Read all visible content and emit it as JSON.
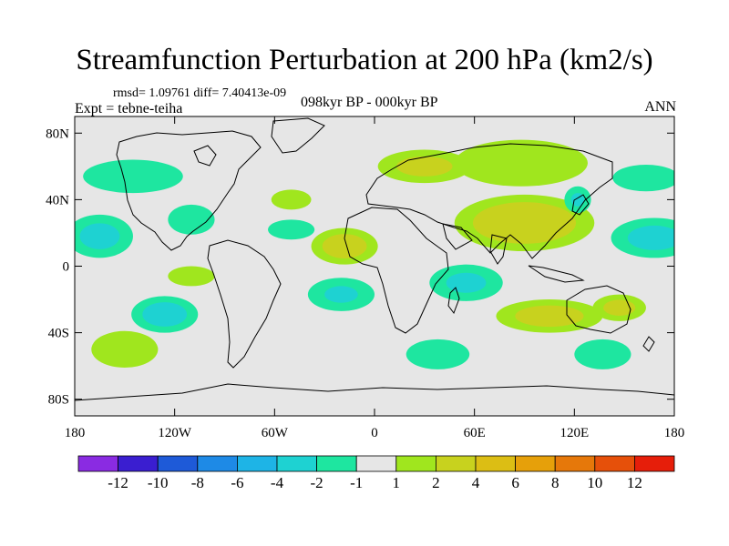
{
  "title": "Streamfunction Perturbation at 200 hPa (km2/s)",
  "stats_text": "rmsd= 1.09761  diff= 7.40413e-09",
  "experiment": "Expt = tebne-teiha",
  "period": "098kyr BP - 000kyr BP",
  "season": "ANN",
  "map": {
    "lat_ticks": [
      {
        "value": 80,
        "label": "80N"
      },
      {
        "value": 40,
        "label": "40N"
      },
      {
        "value": 0,
        "label": "0"
      },
      {
        "value": -40,
        "label": "40S"
      },
      {
        "value": -80,
        "label": "80S"
      }
    ],
    "lon_ticks": [
      {
        "value": -180,
        "label": "180"
      },
      {
        "value": -120,
        "label": "120W"
      },
      {
        "value": -60,
        "label": "60W"
      },
      {
        "value": 0,
        "label": "0"
      },
      {
        "value": 60,
        "label": "60E"
      },
      {
        "value": 120,
        "label": "120E"
      },
      {
        "value": 180,
        "label": "180"
      }
    ],
    "lon_range": [
      -180,
      180
    ],
    "lat_range": [
      -90,
      90
    ],
    "background_color": "#e6e6e6"
  },
  "anomalies": [
    {
      "lon": -145,
      "lat": 54,
      "rlon": 30,
      "rlat": 10,
      "value": -1.5
    },
    {
      "lon": -165,
      "lat": 18,
      "rlon": 20,
      "rlat": 13,
      "value": -2.5
    },
    {
      "lon": -110,
      "lat": 28,
      "rlon": 14,
      "rlat": 9,
      "value": -1.8
    },
    {
      "lon": -50,
      "lat": 40,
      "rlon": 12,
      "rlat": 6,
      "value": 1.4
    },
    {
      "lon": -50,
      "lat": 22,
      "rlon": 14,
      "rlat": 6,
      "value": -1.4
    },
    {
      "lon": -110,
      "lat": -6,
      "rlon": 14,
      "rlat": 6,
      "value": 1.3
    },
    {
      "lon": -126,
      "lat": -29,
      "rlon": 20,
      "rlat": 11,
      "value": -3.0
    },
    {
      "lon": -150,
      "lat": -50,
      "rlon": 20,
      "rlat": 11,
      "value": 1.8
    },
    {
      "lon": -18,
      "lat": 12,
      "rlon": 20,
      "rlat": 11,
      "value": 3.0
    },
    {
      "lon": -20,
      "lat": -17,
      "rlon": 20,
      "rlat": 10,
      "value": -2.0
    },
    {
      "lon": 30,
      "lat": 60,
      "rlon": 28,
      "rlat": 10,
      "value": 2.5
    },
    {
      "lon": 88,
      "lat": 62,
      "rlon": 40,
      "rlat": 14,
      "value": 1.8
    },
    {
      "lon": 90,
      "lat": 26,
      "rlon": 42,
      "rlat": 17,
      "value": 3.8
    },
    {
      "lon": 55,
      "lat": -10,
      "rlon": 22,
      "rlat": 11,
      "value": -2.2
    },
    {
      "lon": 105,
      "lat": -30,
      "rlon": 32,
      "rlat": 10,
      "value": 2.8
    },
    {
      "lon": 147,
      "lat": -25,
      "rlon": 16,
      "rlat": 8,
      "value": 2.5
    },
    {
      "lon": 38,
      "lat": -53,
      "rlon": 19,
      "rlat": 9,
      "value": -1.6
    },
    {
      "lon": 137,
      "lat": -53,
      "rlon": 17,
      "rlat": 9,
      "value": -1.6
    },
    {
      "lon": 163,
      "lat": 53,
      "rlon": 20,
      "rlat": 8,
      "value": -1.6
    },
    {
      "lon": 168,
      "lat": 17,
      "rlon": 26,
      "rlat": 12,
      "value": -2.6
    },
    {
      "lon": 122,
      "lat": 40,
      "rlon": 8,
      "rlat": 8,
      "value": -2.0
    }
  ],
  "colorbar": {
    "colors": [
      "#8a2be2",
      "#3a1ed0",
      "#1e5ad8",
      "#1e8ae6",
      "#1eb4e6",
      "#1ed2d2",
      "#1ee6a0",
      "#e6e6e6",
      "#a0e61e",
      "#c8d21e",
      "#dcbe14",
      "#e6a00a",
      "#e6780a",
      "#e6500a",
      "#e61e0a"
    ],
    "tick_labels": [
      "-12",
      "-10",
      "-8",
      "-6",
      "-4",
      "-2",
      "-1",
      "1",
      "2",
      "4",
      "6",
      "8",
      "10",
      "12"
    ]
  }
}
